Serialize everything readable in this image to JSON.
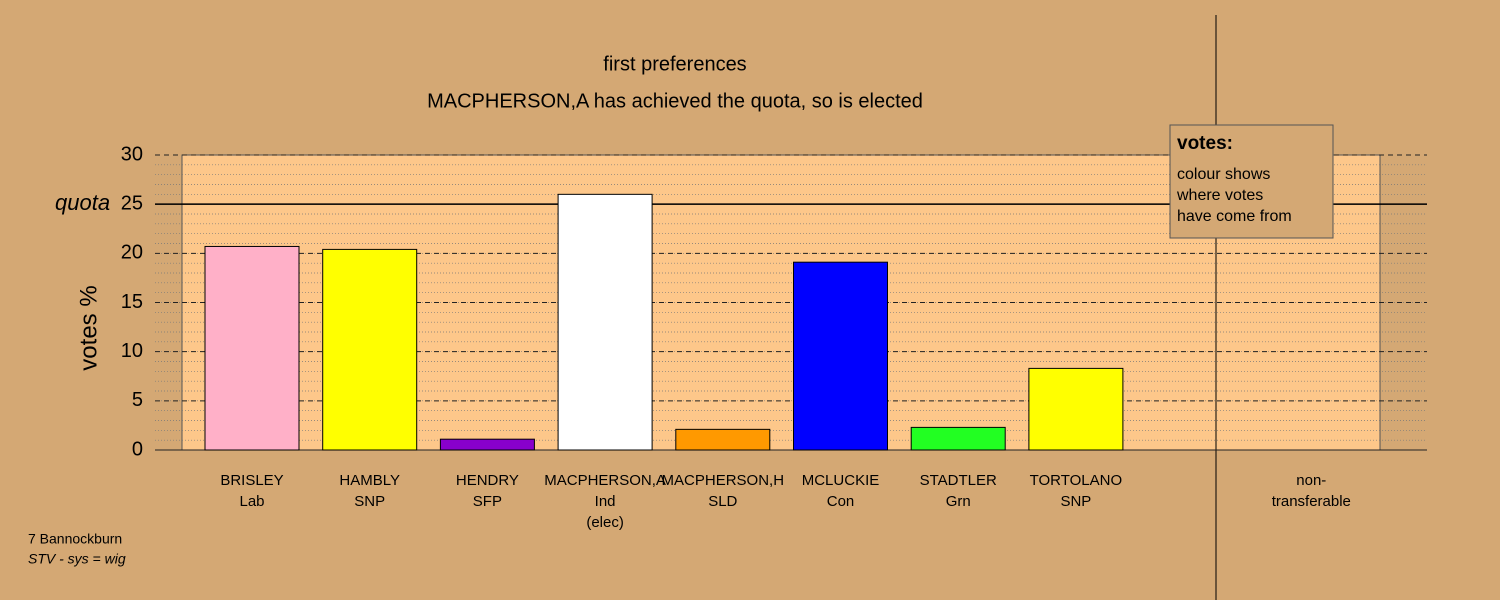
{
  "chart_data": {
    "type": "bar",
    "title": "first preferences",
    "subtitle": "MACPHERSON,A has achieved the quota, so is elected",
    "y_label": "votes %",
    "categories": [
      [
        "BRISLEY",
        "Lab"
      ],
      [
        "HAMBLY",
        "SNP"
      ],
      [
        "HENDRY",
        "SFP"
      ],
      [
        "MACPHERSON,A",
        "Ind",
        "(elec)"
      ],
      [
        "MACPHERSON,H",
        "SLD"
      ],
      [
        "MCLUCKIE",
        "Con"
      ],
      [
        "STADTLER",
        "Grn"
      ],
      [
        "TORTOLANO",
        "SNP"
      ],
      null,
      [
        "non-",
        "transferable"
      ]
    ],
    "values": [
      20.7,
      20.4,
      1.1,
      26.0,
      2.1,
      19.1,
      2.3,
      8.3,
      null,
      0
    ],
    "colors": [
      "#ffb0c8",
      "#ffff00",
      "#8800cc",
      "#ffffff",
      "#ff9900",
      "#0000ff",
      "#22ff22",
      "#ffff00",
      null,
      "#ffffff"
    ],
    "ylim": [
      0,
      30
    ],
    "yticks": [
      0,
      5,
      10,
      15,
      20,
      25,
      30
    ],
    "minor_grid_step": 1,
    "quota": 25,
    "quota_label": "quota",
    "legend": {
      "title": "votes:",
      "lines": [
        "colour shows",
        "where votes",
        "have come from"
      ],
      "position": "upper right"
    },
    "footer": [
      "7 Bannockburn",
      "STV - sys = wig"
    ]
  }
}
